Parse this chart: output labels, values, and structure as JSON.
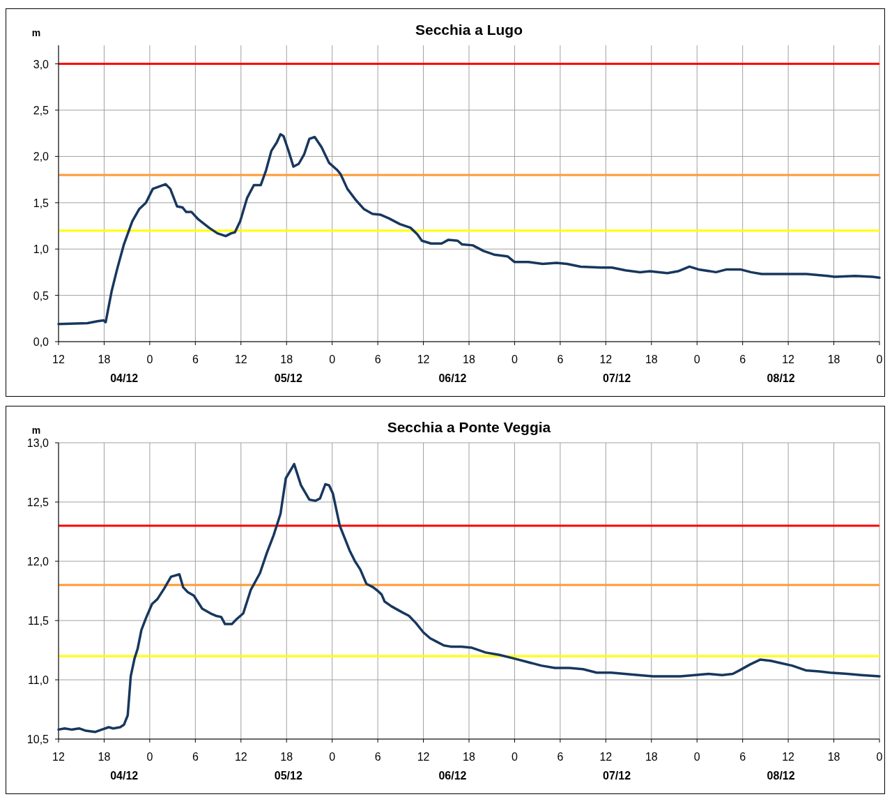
{
  "chart_data": [
    {
      "type": "line",
      "title": "Secchia a Lugo",
      "ylabel": "m",
      "grid": true,
      "marker": "none",
      "line_style": "solid",
      "xlim": [
        "--12-04T12:00",
        "--12-09T00:00"
      ],
      "ylim": [
        0,
        3.2
      ],
      "xticks": [
        {
          "value": "--12-04T12:00",
          "label": "12"
        },
        {
          "value": "--12-04T18:00",
          "label": "18"
        },
        {
          "value": "--12-05T00:00",
          "label": "0"
        },
        {
          "value": "--12-05T06:00",
          "label": "6"
        },
        {
          "value": "--12-05T12:00",
          "label": "12"
        },
        {
          "value": "--12-05T18:00",
          "label": "18"
        },
        {
          "value": "--12-06T00:00",
          "label": "0"
        },
        {
          "value": "--12-06T06:00",
          "label": "6"
        },
        {
          "value": "--12-06T12:00",
          "label": "12"
        },
        {
          "value": "--12-06T18:00",
          "label": "18"
        },
        {
          "value": "--12-07T00:00",
          "label": "0"
        },
        {
          "value": "--12-07T06:00",
          "label": "6"
        },
        {
          "value": "--12-07T12:00",
          "label": "12"
        },
        {
          "value": "--12-07T18:00",
          "label": "18"
        },
        {
          "value": "--12-08T00:00",
          "label": "0"
        },
        {
          "value": "--12-08T06:00",
          "label": "6"
        },
        {
          "value": "--12-08T12:00",
          "label": "12"
        },
        {
          "value": "--12-08T18:00",
          "label": "18"
        },
        {
          "value": "--12-09T00:00",
          "label": "0"
        }
      ],
      "yticks": [
        {
          "value": 0,
          "label": "0,0"
        },
        {
          "value": 0.5,
          "label": "0,5"
        },
        {
          "value": 1,
          "label": "1,0"
        },
        {
          "value": 1.5,
          "label": "1,5"
        },
        {
          "value": 2,
          "label": "2,0"
        },
        {
          "value": 2.5,
          "label": "2,5"
        },
        {
          "value": 3,
          "label": "3,0"
        }
      ],
      "ref_lines": [
        {
          "axis": "y",
          "value": 3.0,
          "color": "#ff0000"
        },
        {
          "axis": "y",
          "value": 1.8,
          "color": "#ff9933"
        },
        {
          "axis": "y",
          "value": 1.2,
          "color": "#ffff00"
        }
      ],
      "annotations": [
        "04/12",
        "05/12",
        "06/12",
        "07/12",
        "08/12"
      ],
      "series": [
        {
          "color": "#17375e",
          "x": [
            "--12-04T12:00",
            "--12-04T15:48",
            "--12-04T17:06",
            "--12-04T17:54",
            "--12-04T18:12",
            "--12-04T19:00",
            "--12-04T19:42",
            "--12-04T20:36",
            "--12-04T21:42",
            "--12-04T22:36",
            "--12-04T23:30",
            "--12-05T00:24",
            "--12-05T02:06",
            "--12-05T02:42",
            "--12-05T03:36",
            "--12-05T04:18",
            "--12-05T04:48",
            "--12-05T05:30",
            "--12-05T06:24",
            "--12-05T07:48",
            "--12-05T08:54",
            "--12-05T10:00",
            "--12-05T10:42",
            "--12-05T11:12",
            "--12-05T11:54",
            "--12-05T12:48",
            "--12-05T13:42",
            "--12-05T14:36",
            "--12-05T15:18",
            "--12-05T16:00",
            "--12-05T16:42",
            "--12-05T17:12",
            "--12-05T17:36",
            "--12-05T18:18",
            "--12-05T18:54",
            "--12-05T19:36",
            "--12-05T20:18",
            "--12-05T21:00",
            "--12-05T21:42",
            "--12-05T22:36",
            "--12-05T23:36",
            "--12-06T00:42",
            "--12-06T01:06",
            "--12-06T02:00",
            "--12-06T03:06",
            "--12-06T04:12",
            "--12-06T05:18",
            "--12-06T06:24",
            "--12-06T07:30",
            "--12-06T08:54",
            "--12-06T10:18",
            "--12-06T11:12",
            "--12-06T11:48",
            "--12-06T13:00",
            "--12-06T14:24",
            "--12-06T15:18",
            "--12-06T16:30",
            "--12-06T17:06",
            "--12-06T18:30",
            "--12-06T19:54",
            "--12-06T21:18",
            "--12-06T23:06",
            "--12-07T00:00",
            "--12-07T01:48",
            "--12-07T03:42",
            "--12-07T05:30",
            "--12-07T06:54",
            "--12-07T08:42",
            "--12-07T11:24",
            "--12-07T12:48",
            "--12-07T14:36",
            "--12-07T16:30",
            "--12-07T17:48",
            "--12-07T20:06",
            "--12-07T21:30",
            "--12-07T23:00",
            "--12-08T00:12",
            "--12-08T02:30",
            "--12-08T03:54",
            "--12-08T05:42",
            "--12-08T07:06",
            "--12-08T08:30",
            "--12-08T11:42",
            "--12-08T14:24",
            "--12-08T17:12",
            "--12-08T18:06",
            "--12-08T20:48",
            "--12-08T23:06",
            "--12-09T00:00"
          ],
          "values": [
            0.19,
            0.2,
            0.22,
            0.23,
            0.21,
            0.55,
            0.78,
            1.05,
            1.3,
            1.43,
            1.5,
            1.65,
            1.7,
            1.65,
            1.46,
            1.45,
            1.4,
            1.4,
            1.32,
            1.23,
            1.17,
            1.14,
            1.17,
            1.18,
            1.3,
            1.55,
            1.69,
            1.69,
            1.85,
            2.06,
            2.15,
            2.24,
            2.22,
            2.05,
            1.89,
            1.92,
            2.02,
            2.19,
            2.21,
            2.1,
            1.93,
            1.85,
            1.81,
            1.65,
            1.53,
            1.43,
            1.38,
            1.37,
            1.33,
            1.27,
            1.23,
            1.16,
            1.09,
            1.06,
            1.06,
            1.1,
            1.09,
            1.05,
            1.04,
            0.98,
            0.94,
            0.92,
            0.86,
            0.86,
            0.84,
            0.85,
            0.84,
            0.81,
            0.8,
            0.8,
            0.77,
            0.75,
            0.76,
            0.74,
            0.76,
            0.81,
            0.78,
            0.75,
            0.78,
            0.78,
            0.75,
            0.73,
            0.73,
            0.73,
            0.71,
            0.7,
            0.71,
            0.7,
            0.69
          ]
        }
      ]
    },
    {
      "type": "line",
      "title": "Secchia a Ponte Veggia",
      "ylabel": "m",
      "grid": true,
      "marker": "none",
      "line_style": "solid",
      "xlim": [
        "--12-04T12:00",
        "--12-09T00:00"
      ],
      "ylim": [
        10.5,
        13
      ],
      "xticks": [
        {
          "value": "--12-04T12:00",
          "label": "12"
        },
        {
          "value": "--12-04T18:00",
          "label": "18"
        },
        {
          "value": "--12-05T00:00",
          "label": "0"
        },
        {
          "value": "--12-05T06:00",
          "label": "6"
        },
        {
          "value": "--12-05T12:00",
          "label": "12"
        },
        {
          "value": "--12-05T18:00",
          "label": "18"
        },
        {
          "value": "--12-06T00:00",
          "label": "0"
        },
        {
          "value": "--12-06T06:00",
          "label": "6"
        },
        {
          "value": "--12-06T12:00",
          "label": "12"
        },
        {
          "value": "--12-06T18:00",
          "label": "18"
        },
        {
          "value": "--12-07T00:00",
          "label": "0"
        },
        {
          "value": "--12-07T06:00",
          "label": "6"
        },
        {
          "value": "--12-07T12:00",
          "label": "12"
        },
        {
          "value": "--12-07T18:00",
          "label": "18"
        },
        {
          "value": "--12-08T00:00",
          "label": "0"
        },
        {
          "value": "--12-08T06:00",
          "label": "6"
        },
        {
          "value": "--12-08T12:00",
          "label": "12"
        },
        {
          "value": "--12-08T18:00",
          "label": "18"
        },
        {
          "value": "--12-09T00:00",
          "label": "0"
        }
      ],
      "yticks": [
        {
          "value": 10.5,
          "label": "10,5"
        },
        {
          "value": 11,
          "label": "11,0"
        },
        {
          "value": 11.5,
          "label": "11,5"
        },
        {
          "value": 12,
          "label": "12,0"
        },
        {
          "value": 12.5,
          "label": "12,5"
        },
        {
          "value": 13,
          "label": "13,0"
        }
      ],
      "ref_lines": [
        {
          "axis": "y",
          "value": 12.3,
          "color": "#ff0000"
        },
        {
          "axis": "y",
          "value": 11.8,
          "color": "#ff9933"
        },
        {
          "axis": "y",
          "value": 11.2,
          "color": "#ffff00"
        }
      ],
      "annotations": [
        "04/12",
        "05/12",
        "06/12",
        "07/12",
        "08/12"
      ],
      "series": [
        {
          "color": "#17375e",
          "x": [
            "--12-04T12:00",
            "--12-04T12:48",
            "--12-04T13:42",
            "--12-04T14:42",
            "--12-04T15:36",
            "--12-04T16:48",
            "--12-04T17:42",
            "--12-04T18:36",
            "--12-04T19:12",
            "--12-04T20:06",
            "--12-04T20:36",
            "--12-04T21:06",
            "--12-04T21:30",
            "--12-04T22:00",
            "--12-04T22:24",
            "--12-04T22:54",
            "--12-04T23:30",
            "--12-05T00:18",
            "--12-05T01:00",
            "--12-05T01:54",
            "--12-05T02:48",
            "--12-05T03:54",
            "--12-05T04:24",
            "--12-05T05:00",
            "--12-05T05:48",
            "--12-05T06:54",
            "--12-05T08:00",
            "--12-05T08:42",
            "--12-05T09:24",
            "--12-05T09:54",
            "--12-05T10:48",
            "--12-05T11:24",
            "--12-05T12:18",
            "--12-05T13:18",
            "--12-05T14:30",
            "--12-05T15:24",
            "--12-05T16:18",
            "--12-05T17:12",
            "--12-05T17:54",
            "--12-05T19:00",
            "--12-05T19:54",
            "--12-05T21:00",
            "--12-05T21:48",
            "--12-05T22:24",
            "--12-05T23:06",
            "--12-05T23:36",
            "--12-06T00:06",
            "--12-06T01:00",
            "--12-06T02:18",
            "--12-06T03:00",
            "--12-06T03:42",
            "--12-06T04:30",
            "--12-06T05:24",
            "--12-06T06:00",
            "--12-06T06:30",
            "--12-06T06:54",
            "--12-06T07:48",
            "--12-06T09:12",
            "--12-06T10:06",
            "--12-06T11:00",
            "--12-06T12:00",
            "--12-06T12:54",
            "--12-06T13:48",
            "--12-06T14:42",
            "--12-06T15:36",
            "--12-06T17:00",
            "--12-06T18:24",
            "--12-06T20:12",
            "--12-06T22:00",
            "--12-06T23:54",
            "--12-07T01:42",
            "--12-07T03:30",
            "--12-07T05:18",
            "--12-07T07:12",
            "--12-07T09:00",
            "--12-07T10:48",
            "--12-07T12:42",
            "--12-07T14:30",
            "--12-07T16:18",
            "--12-07T18:12",
            "--12-07T20:00",
            "--12-07T21:48",
            "--12-07T23:42",
            "--12-08T01:30",
            "--12-08T03:18",
            "--12-08T04:42",
            "--12-08T05:36",
            "--12-08T07:00",
            "--12-08T08:18",
            "--12-08T09:42",
            "--12-08T11:06",
            "--12-08T12:30",
            "--12-08T14:18",
            "--12-08T16:06",
            "--12-08T17:30",
            "--12-08T19:48",
            "--12-08T21:36",
            "--12-09T00:00"
          ],
          "values": [
            10.58,
            10.59,
            10.58,
            10.59,
            10.57,
            10.56,
            10.58,
            10.6,
            10.59,
            10.6,
            10.62,
            10.7,
            11.03,
            11.18,
            11.26,
            11.42,
            11.52,
            11.64,
            11.68,
            11.77,
            11.87,
            11.89,
            11.78,
            11.74,
            11.71,
            11.6,
            11.56,
            11.54,
            11.53,
            11.47,
            11.47,
            11.51,
            11.56,
            11.76,
            11.9,
            12.07,
            12.22,
            12.4,
            12.7,
            12.82,
            12.64,
            12.52,
            12.51,
            12.53,
            12.65,
            12.64,
            12.57,
            12.3,
            12.09,
            12.0,
            11.93,
            11.81,
            11.78,
            11.75,
            11.72,
            11.66,
            11.62,
            11.57,
            11.54,
            11.48,
            11.4,
            11.35,
            11.32,
            11.29,
            11.28,
            11.28,
            11.27,
            11.23,
            11.21,
            11.18,
            11.15,
            11.12,
            11.1,
            11.1,
            11.09,
            11.06,
            11.06,
            11.05,
            11.04,
            11.03,
            11.03,
            11.03,
            11.04,
            11.05,
            11.04,
            11.05,
            11.08,
            11.13,
            11.17,
            11.16,
            11.14,
            11.12,
            11.08,
            11.07,
            11.06,
            11.05,
            11.04,
            11.03
          ]
        }
      ]
    }
  ]
}
